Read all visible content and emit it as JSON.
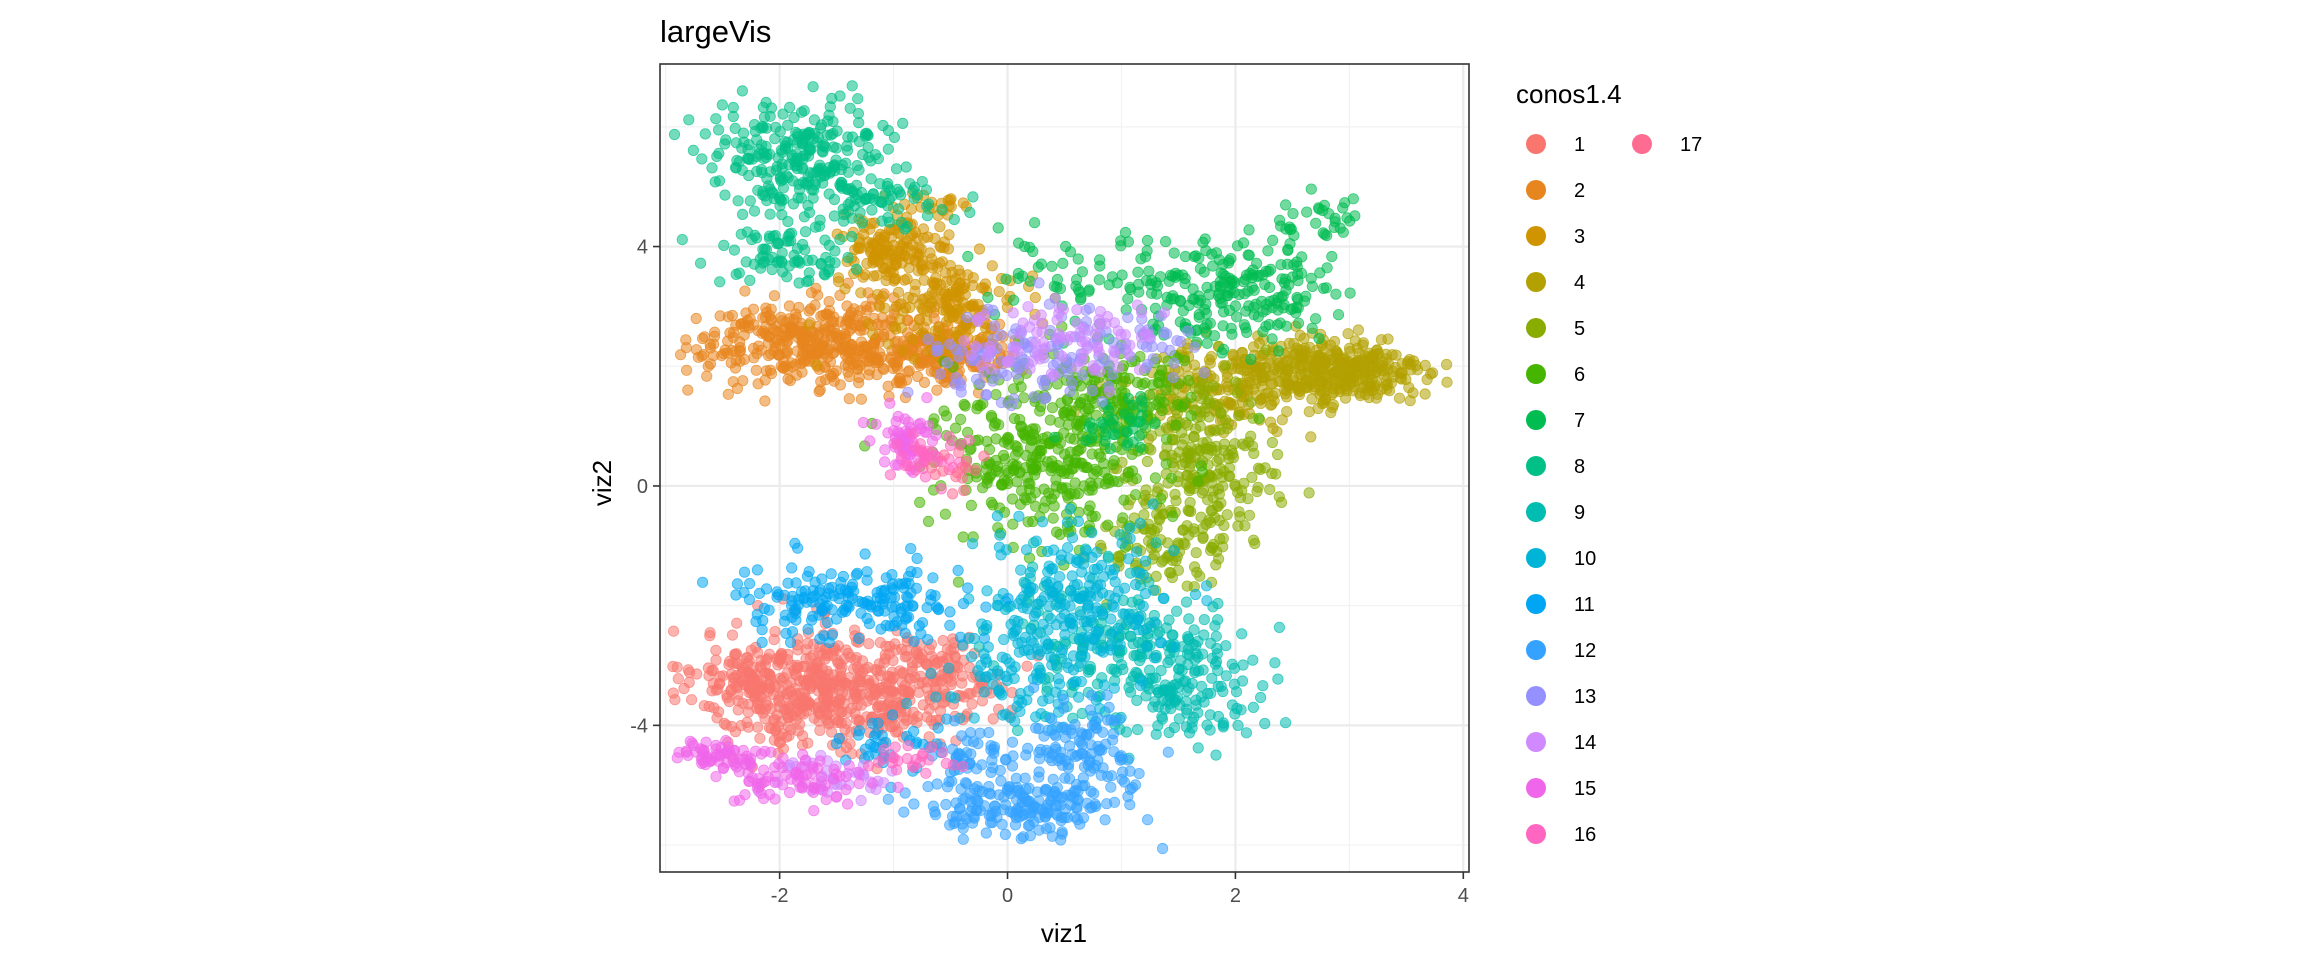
{
  "chart_data": {
    "type": "scatter",
    "title": "largeVis",
    "xlabel": "viz1",
    "ylabel": "viz2",
    "xlim": [
      -3.05,
      4.05
    ],
    "ylim": [
      -6.45,
      7.05
    ],
    "xticks": [
      -2,
      0,
      2,
      4
    ],
    "yticks": [
      -4,
      0,
      4
    ],
    "x_tick_labels": [
      "-2",
      "0",
      "2",
      "4"
    ],
    "y_tick_labels": [
      "-4",
      "0",
      "4"
    ],
    "grid": true,
    "point_alpha": 0.55,
    "legend": {
      "title": "conos1.4",
      "position": "right",
      "columns": 2
    },
    "series": [
      {
        "name": "1",
        "color": "#F8766D",
        "clusters": [
          {
            "cx": -1.6,
            "cy": -3.4,
            "sx": 0.55,
            "sy": 0.5,
            "n": 520
          },
          {
            "cx": -0.6,
            "cy": -3.2,
            "sx": 0.3,
            "sy": 0.35,
            "n": 120
          },
          {
            "cx": -2.3,
            "cy": -3.2,
            "sx": 0.18,
            "sy": 0.25,
            "n": 60
          }
        ]
      },
      {
        "name": "2",
        "color": "#E7851E",
        "clusters": [
          {
            "cx": -1.6,
            "cy": 2.4,
            "sx": 0.55,
            "sy": 0.35,
            "n": 420
          },
          {
            "cx": -0.6,
            "cy": 2.2,
            "sx": 0.35,
            "sy": 0.3,
            "n": 160
          }
        ]
      },
      {
        "name": "3",
        "color": "#D09400",
        "clusters": [
          {
            "cx": -1.0,
            "cy": 3.9,
            "sx": 0.25,
            "sy": 0.3,
            "n": 150
          },
          {
            "cx": -0.5,
            "cy": 3.0,
            "sx": 0.3,
            "sy": 0.35,
            "n": 160
          },
          {
            "cx": -0.6,
            "cy": 4.7,
            "sx": 0.15,
            "sy": 0.1,
            "n": 20
          }
        ]
      },
      {
        "name": "4",
        "color": "#B2A100",
        "clusters": [
          {
            "cx": 2.8,
            "cy": 1.9,
            "sx": 0.45,
            "sy": 0.3,
            "n": 380
          },
          {
            "cx": 1.8,
            "cy": 1.6,
            "sx": 0.4,
            "sy": 0.35,
            "n": 160
          }
        ]
      },
      {
        "name": "5",
        "color": "#89AC00",
        "clusters": [
          {
            "cx": 1.7,
            "cy": 0.2,
            "sx": 0.3,
            "sy": 0.75,
            "n": 260
          },
          {
            "cx": 1.2,
            "cy": -1.0,
            "sx": 0.25,
            "sy": 0.4,
            "n": 60
          }
        ]
      },
      {
        "name": "6",
        "color": "#45B500",
        "clusters": [
          {
            "cx": 0.4,
            "cy": 0.6,
            "sx": 0.5,
            "sy": 0.75,
            "n": 380
          },
          {
            "cx": 0.9,
            "cy": 1.6,
            "sx": 0.35,
            "sy": 0.35,
            "n": 100
          }
        ]
      },
      {
        "name": "7",
        "color": "#00BC51",
        "clusters": [
          {
            "cx": 2.0,
            "cy": 3.2,
            "sx": 0.4,
            "sy": 0.45,
            "n": 200
          },
          {
            "cx": 2.7,
            "cy": 4.5,
            "sx": 0.2,
            "sy": 0.2,
            "n": 30
          },
          {
            "cx": 0.9,
            "cy": 3.5,
            "sx": 0.5,
            "sy": 0.4,
            "n": 80
          },
          {
            "cx": 1.0,
            "cy": 1.0,
            "sx": 0.2,
            "sy": 0.2,
            "n": 40
          }
        ]
      },
      {
        "name": "8",
        "color": "#00C087",
        "clusters": [
          {
            "cx": -1.8,
            "cy": 5.5,
            "sx": 0.4,
            "sy": 0.45,
            "n": 260
          },
          {
            "cx": -2.0,
            "cy": 3.9,
            "sx": 0.3,
            "sy": 0.25,
            "n": 80
          },
          {
            "cx": -1.1,
            "cy": 4.8,
            "sx": 0.3,
            "sy": 0.25,
            "n": 60
          }
        ]
      },
      {
        "name": "9",
        "color": "#00BCB1",
        "clusters": [
          {
            "cx": 1.6,
            "cy": -3.2,
            "sx": 0.35,
            "sy": 0.5,
            "n": 170
          },
          {
            "cx": 0.8,
            "cy": -2.6,
            "sx": 0.45,
            "sy": 0.6,
            "n": 150
          }
        ]
      },
      {
        "name": "10",
        "color": "#00B4D8",
        "clusters": [
          {
            "cx": 0.6,
            "cy": -1.9,
            "sx": 0.45,
            "sy": 0.6,
            "n": 220
          },
          {
            "cx": 0.1,
            "cy": -3.3,
            "sx": 0.35,
            "sy": 0.4,
            "n": 90
          }
        ]
      },
      {
        "name": "11",
        "color": "#00A6F3",
        "clusters": [
          {
            "cx": -1.6,
            "cy": -1.9,
            "sx": 0.4,
            "sy": 0.3,
            "n": 130
          },
          {
            "cx": -0.8,
            "cy": -1.9,
            "sx": 0.35,
            "sy": 0.35,
            "n": 60
          },
          {
            "cx": -1.0,
            "cy": -4.3,
            "sx": 0.25,
            "sy": 0.25,
            "n": 40
          }
        ]
      },
      {
        "name": "12",
        "color": "#35A2FF",
        "clusters": [
          {
            "cx": 0.1,
            "cy": -5.4,
            "sx": 0.4,
            "sy": 0.25,
            "n": 170
          },
          {
            "cx": 0.7,
            "cy": -4.5,
            "sx": 0.25,
            "sy": 0.45,
            "n": 120
          },
          {
            "cx": -0.3,
            "cy": -4.6,
            "sx": 0.2,
            "sy": 0.3,
            "n": 50
          }
        ]
      },
      {
        "name": "13",
        "color": "#9590FF",
        "clusters": [
          {
            "cx": 0.2,
            "cy": 2.2,
            "sx": 0.45,
            "sy": 0.4,
            "n": 120
          },
          {
            "cx": 1.2,
            "cy": 2.3,
            "sx": 0.25,
            "sy": 0.25,
            "n": 30
          }
        ]
      },
      {
        "name": "14",
        "color": "#D089FF",
        "clusters": [
          {
            "cx": 0.5,
            "cy": 2.4,
            "sx": 0.45,
            "sy": 0.35,
            "n": 90
          },
          {
            "cx": -1.6,
            "cy": -4.9,
            "sx": 0.3,
            "sy": 0.2,
            "n": 40
          }
        ]
      },
      {
        "name": "15",
        "color": "#F066EA",
        "clusters": [
          {
            "cx": -2.5,
            "cy": -4.5,
            "sx": 0.18,
            "sy": 0.12,
            "n": 70
          },
          {
            "cx": -1.8,
            "cy": -4.9,
            "sx": 0.3,
            "sy": 0.2,
            "n": 70
          },
          {
            "cx": -0.9,
            "cy": 0.7,
            "sx": 0.15,
            "sy": 0.25,
            "n": 60
          }
        ]
      },
      {
        "name": "16",
        "color": "#FF66C1",
        "clusters": [
          {
            "cx": -0.7,
            "cy": 0.5,
            "sx": 0.15,
            "sy": 0.25,
            "n": 35
          },
          {
            "cx": -0.8,
            "cy": -4.6,
            "sx": 0.25,
            "sy": 0.15,
            "n": 25
          }
        ]
      },
      {
        "name": "17",
        "color": "#FF6C91",
        "clusters": [
          {
            "cx": -0.5,
            "cy": 0.3,
            "sx": 0.15,
            "sy": 0.2,
            "n": 15
          }
        ]
      }
    ]
  }
}
